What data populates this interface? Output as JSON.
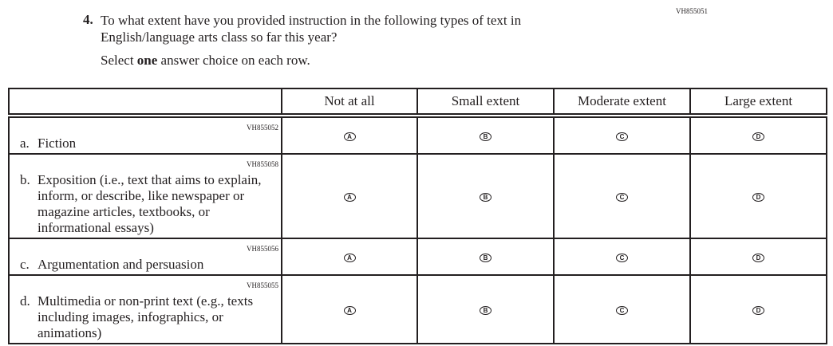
{
  "question": {
    "id": "VH855051",
    "number": "4.",
    "text": "To what extent have you provided instruction in the following types of text in English/language arts class so far this year?",
    "instruction_pre": "Select ",
    "instruction_bold": "one",
    "instruction_post": " answer choice on each row."
  },
  "columns": [
    "Not at all",
    "Small extent",
    "Moderate extent",
    "Large extent"
  ],
  "bubbles": [
    "A",
    "B",
    "C",
    "D"
  ],
  "rows": [
    {
      "id": "VH855052",
      "letter": "a.",
      "label": "Fiction"
    },
    {
      "id": "VH855058",
      "letter": "b.",
      "label": "Exposition (i.e., text that aims to explain, inform, or describe, like newspaper or magazine articles, textbooks, or informational essays)"
    },
    {
      "id": "VH855056",
      "letter": "c.",
      "label": "Argumentation and persuasion"
    },
    {
      "id": "VH855055",
      "letter": "d.",
      "label": "Multimedia or non-print text (e.g., texts including images, infographics, or animations)"
    }
  ]
}
